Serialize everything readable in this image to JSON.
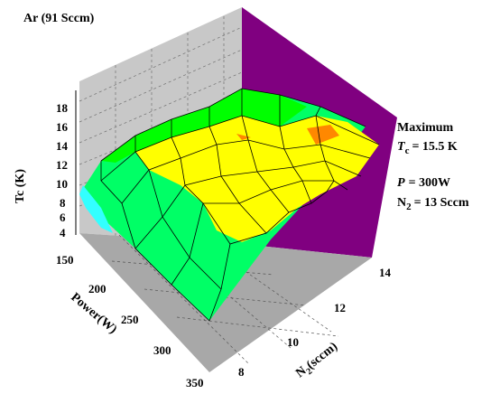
{
  "chart_data": {
    "type": "surface",
    "title": "Ar (91 Sccm)",
    "zlabel": "Tc (K)",
    "xlabel": "Power(W)",
    "ylabel": "N2(sccm)",
    "x_ticks": [
      "150",
      "200",
      "250",
      "300",
      "350"
    ],
    "y_ticks": [
      "8",
      "10",
      "12",
      "14"
    ],
    "z_ticks": [
      "4",
      "6",
      "8",
      "10",
      "12",
      "14",
      "16",
      "18"
    ],
    "annotation": {
      "line1": "Maximum",
      "tc_symbol": "T",
      "tc_sub": "c",
      "tc_value": "=  15.5 K",
      "p_symbol": "P",
      "p_value": "=  300W",
      "n2_symbol": "N",
      "n2_sub": "2",
      "n2_value": "=  13 Sccm"
    },
    "colors": {
      "back_wall": "#800080",
      "left_wall": "#c0c0c0",
      "floor": "#a8a8a8",
      "level_cyan": "#33ffff",
      "level_green": "#00ff66",
      "level_lime": "#00ff00",
      "level_yellow": "#ffff00",
      "level_orange": "#ff8800"
    }
  }
}
